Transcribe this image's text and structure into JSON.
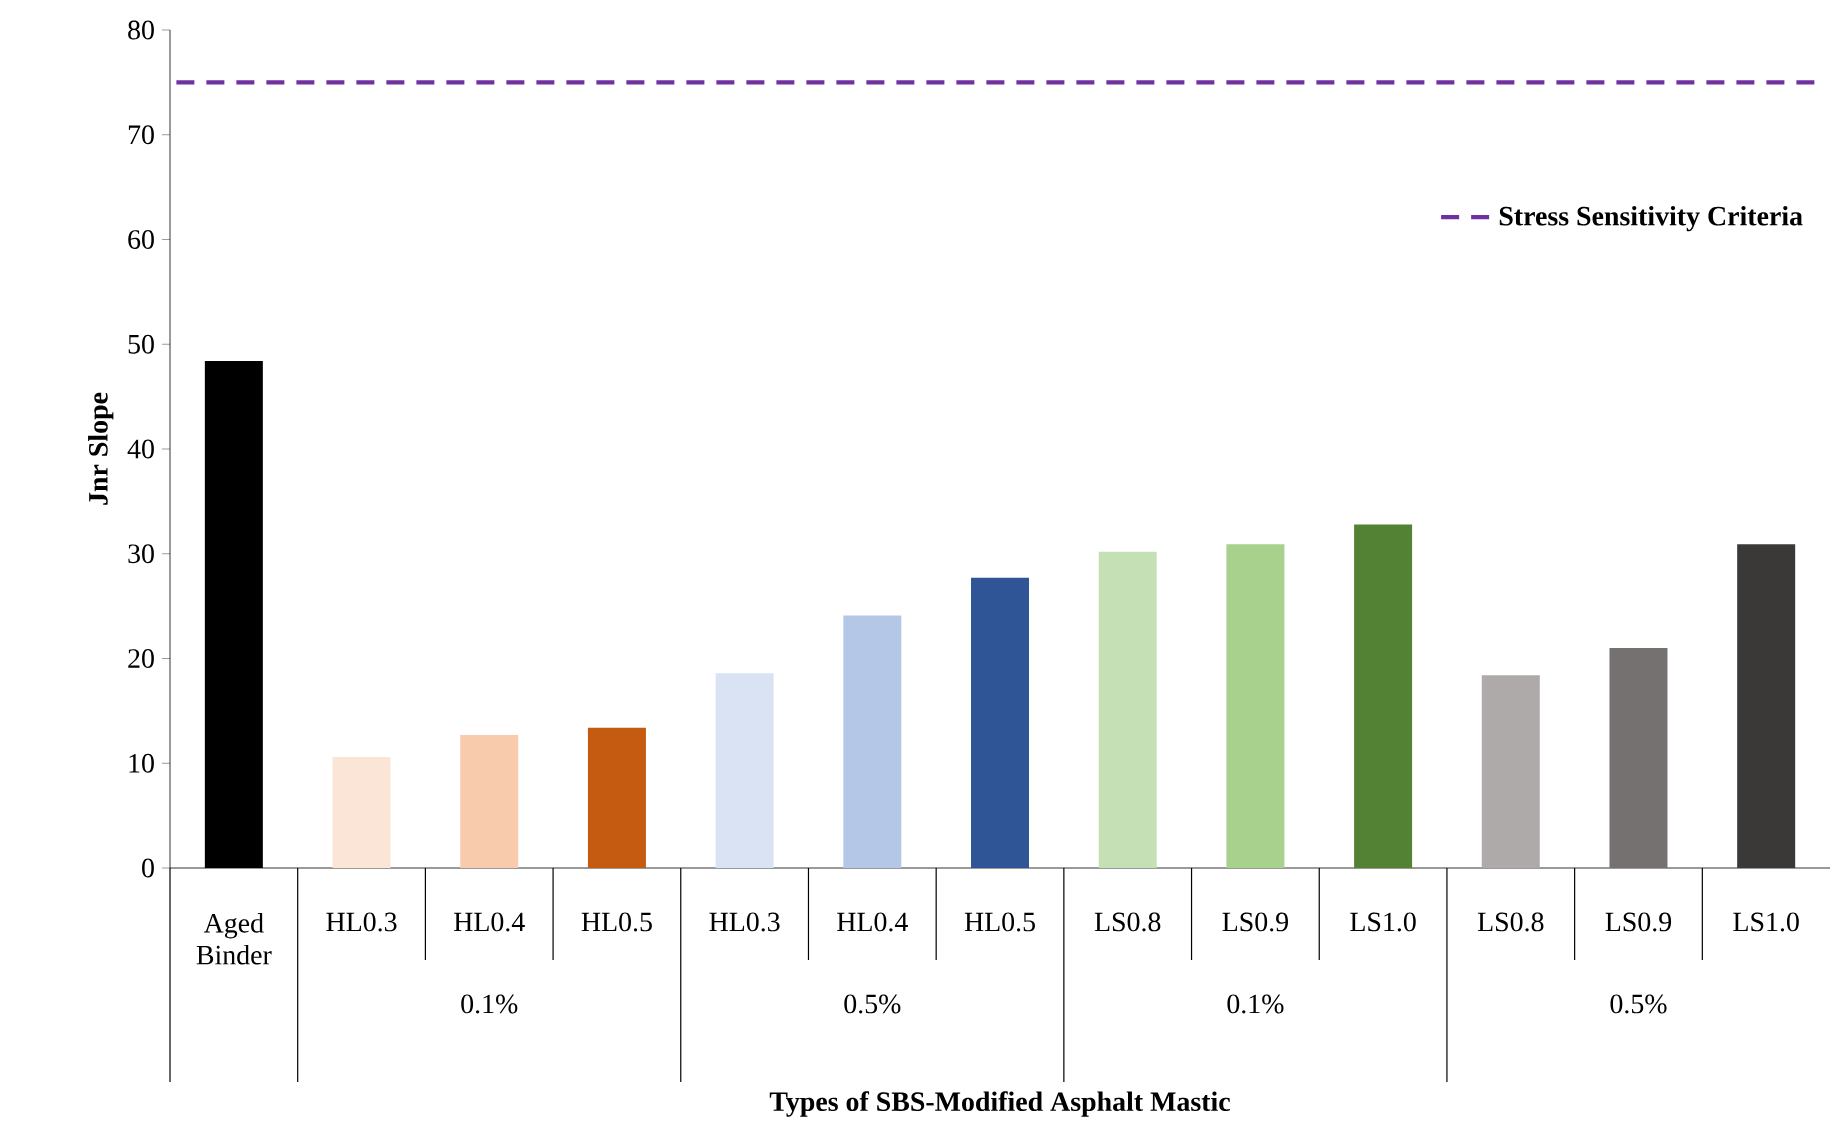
{
  "chart_data": {
    "type": "bar",
    "categories": [
      "Aged Binder",
      "HL0.3",
      "HL0.4",
      "HL0.5",
      "HL0.3",
      "HL0.4",
      "HL0.5",
      "LS0.8",
      "LS0.9",
      "LS1.0",
      "LS0.8",
      "LS0.9",
      "LS1.0"
    ],
    "values": [
      48.4,
      10.6,
      12.7,
      13.4,
      18.6,
      24.1,
      27.7,
      30.2,
      30.9,
      32.8,
      18.4,
      21.0,
      30.9
    ],
    "colors": [
      "#000000",
      "#fbe5d6",
      "#f8cbad",
      "#c55a11",
      "#dae3f3",
      "#b4c7e7",
      "#2f5597",
      "#c5e0b4",
      "#a9d18e",
      "#548235",
      "#aeaaaa",
      "#767171",
      "#3b3838"
    ],
    "xlabel": "Types of SBS-Modified Asphalt Mastic",
    "ylabel": "Jnr Slope",
    "ylim": [
      0,
      80
    ],
    "yticks": [
      0,
      10,
      20,
      30,
      40,
      50,
      60,
      70,
      80
    ],
    "ref_lines": [
      {
        "axis": "y",
        "value": 75,
        "label": "Stress Sensitivity Criteria",
        "color": "#7030a0",
        "line_style": "dashed"
      }
    ],
    "legend": "top right",
    "annotations": [
      "0.1%",
      "0.5%",
      "0.1%",
      "0.5%"
    ]
  }
}
